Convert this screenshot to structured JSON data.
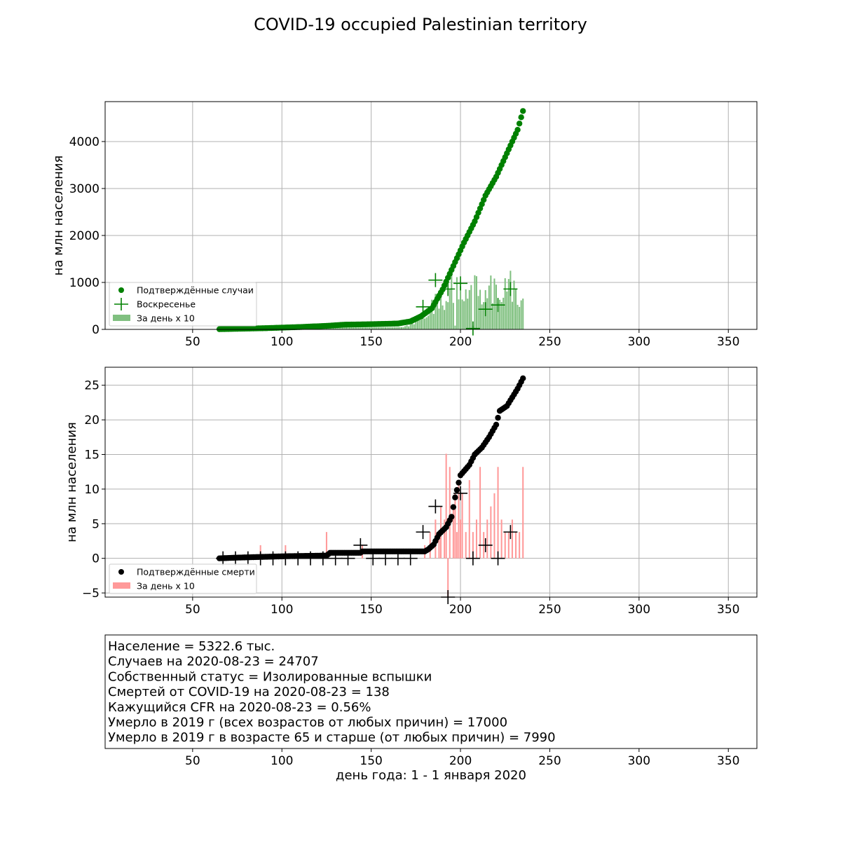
{
  "figure": {
    "title": "COVID-19 occupied Palestinian territory",
    "xlabel": "день года: 1 - 1 января 2020"
  },
  "chart_data": [
    {
      "type": "scatter",
      "id": "cases",
      "ylabel": "на млн населения",
      "xlim": [
        1,
        366
      ],
      "ylim": [
        0,
        4850
      ],
      "xticks": [
        50,
        100,
        150,
        200,
        250,
        300,
        350
      ],
      "yticks": [
        0,
        1000,
        2000,
        3000,
        4000
      ],
      "grid": true,
      "legend": {
        "position": "lower-left",
        "entries": [
          "Подтверждённые случаи",
          "Воскресенье",
          "За день x 10"
        ]
      },
      "colors": {
        "points": "#008000",
        "bars": "#80c080",
        "sunday": "#008000"
      },
      "cumulative_anchors": [
        [
          65,
          5
        ],
        [
          90,
          25
        ],
        [
          110,
          50
        ],
        [
          125,
          75
        ],
        [
          135,
          100
        ],
        [
          150,
          110
        ],
        [
          165,
          125
        ],
        [
          172,
          170
        ],
        [
          178,
          280
        ],
        [
          184,
          450
        ],
        [
          190,
          850
        ],
        [
          196,
          1350
        ],
        [
          202,
          1850
        ],
        [
          208,
          2300
        ],
        [
          214,
          2850
        ],
        [
          220,
          3250
        ],
        [
          226,
          3750
        ],
        [
          232,
          4250
        ],
        [
          235,
          4650
        ]
      ],
      "daily_x10_anchors": [
        [
          65,
          10
        ],
        [
          80,
          20
        ],
        [
          88,
          40
        ],
        [
          100,
          25
        ],
        [
          110,
          30
        ],
        [
          125,
          90
        ],
        [
          130,
          40
        ],
        [
          150,
          40
        ],
        [
          168,
          50
        ],
        [
          172,
          120
        ],
        [
          178,
          300
        ],
        [
          184,
          500
        ],
        [
          190,
          700
        ],
        [
          196,
          900
        ],
        [
          202,
          1000
        ],
        [
          206,
          700
        ],
        [
          210,
          1100
        ],
        [
          214,
          800
        ],
        [
          220,
          900
        ],
        [
          226,
          950
        ],
        [
          230,
          900
        ],
        [
          235,
          850
        ]
      ],
      "sunday_markers": [
        [
          179,
          480
        ],
        [
          186,
          1050
        ],
        [
          193,
          860
        ],
        [
          200,
          980
        ],
        [
          207,
          20
        ],
        [
          214,
          430
        ],
        [
          221,
          520
        ],
        [
          228,
          860
        ]
      ]
    },
    {
      "type": "scatter",
      "id": "deaths",
      "ylabel": "на млн населения",
      "xlim": [
        1,
        366
      ],
      "ylim": [
        -5.6,
        27.6
      ],
      "xticks": [
        50,
        100,
        150,
        200,
        250,
        300,
        350
      ],
      "yticks": [
        -5,
        0,
        5,
        10,
        15,
        20,
        25
      ],
      "grid": true,
      "legend": {
        "position": "lower-left",
        "entries": [
          "Подтверждённые смерти",
          "За день x 10"
        ]
      },
      "colors": {
        "points": "#000000",
        "bars": "#ff9999",
        "sunday": "#000000"
      },
      "cumulative_anchors": [
        [
          65,
          0
        ],
        [
          75,
          0.1
        ],
        [
          88,
          0.2
        ],
        [
          102,
          0.3
        ],
        [
          125,
          0.4
        ],
        [
          127,
          0.8
        ],
        [
          144,
          0.8
        ],
        [
          145,
          1.0
        ],
        [
          180,
          1.0
        ],
        [
          182,
          1.3
        ],
        [
          185,
          2.0
        ],
        [
          188,
          3.5
        ],
        [
          192,
          4.5
        ],
        [
          195,
          6.0
        ],
        [
          197,
          8.8
        ],
        [
          200,
          12.0
        ],
        [
          205,
          13.5
        ],
        [
          208,
          15.0
        ],
        [
          212,
          16.0
        ],
        [
          216,
          17.5
        ],
        [
          220,
          19.3
        ],
        [
          222,
          21.3
        ],
        [
          226,
          22.0
        ],
        [
          232,
          24.5
        ],
        [
          235,
          26.0
        ]
      ],
      "daily_x10_spikes": [
        [
          88,
          1.9
        ],
        [
          102,
          1.9
        ],
        [
          125,
          3.8
        ],
        [
          145,
          1.9
        ],
        [
          180,
          1.9
        ],
        [
          183,
          3.8
        ],
        [
          186,
          5.6
        ],
        [
          188,
          3.8
        ],
        [
          189,
          7.5
        ],
        [
          191,
          5.6
        ],
        [
          192,
          15.1
        ],
        [
          193,
          -5.6
        ],
        [
          194,
          13.2
        ],
        [
          196,
          7.5
        ],
        [
          197,
          9.4
        ],
        [
          198,
          3.8
        ],
        [
          199,
          11.3
        ],
        [
          200,
          5.6
        ],
        [
          201,
          9.4
        ],
        [
          203,
          3.8
        ],
        [
          205,
          11.3
        ],
        [
          207,
          3.8
        ],
        [
          209,
          5.6
        ],
        [
          211,
          13.2
        ],
        [
          213,
          3.8
        ],
        [
          215,
          5.6
        ],
        [
          217,
          7.5
        ],
        [
          219,
          9.4
        ],
        [
          221,
          13.2
        ],
        [
          223,
          5.6
        ],
        [
          225,
          3.8
        ],
        [
          227,
          3.8
        ],
        [
          229,
          5.6
        ],
        [
          231,
          3.8
        ],
        [
          233,
          3.8
        ],
        [
          235,
          13.2
        ]
      ],
      "sunday_markers": [
        [
          67,
          0
        ],
        [
          74,
          0
        ],
        [
          81,
          0
        ],
        [
          88,
          0
        ],
        [
          95,
          0
        ],
        [
          102,
          0
        ],
        [
          109,
          0
        ],
        [
          116,
          0
        ],
        [
          123,
          0
        ],
        [
          130,
          0
        ],
        [
          137,
          0
        ],
        [
          144,
          1.9
        ],
        [
          151,
          0
        ],
        [
          158,
          0
        ],
        [
          165,
          0
        ],
        [
          172,
          0
        ],
        [
          179,
          3.8
        ],
        [
          186,
          7.5
        ],
        [
          193,
          -5.6
        ],
        [
          200,
          9.4
        ],
        [
          207,
          0
        ],
        [
          214,
          1.9
        ],
        [
          221,
          0
        ],
        [
          228,
          3.8
        ]
      ]
    }
  ],
  "info_panel": {
    "xticks": [
      50,
      100,
      150,
      200,
      250,
      300,
      350
    ],
    "lines": [
      "Население = 5322.6 тыс.",
      "Случаев на 2020-08-23 = 24707",
      "Собственный статус = Изолированные вспышки",
      "Смертей от COVID-19 на 2020-08-23 = 138",
      "Кажущийся CFR на 2020-08-23 = 0.56%",
      "Умерло в 2019 г (всех возрастов от любых причин) = 17000",
      "Умерло в 2019 г в возрасте 65 и старше (от любых причин) = 7990"
    ]
  }
}
